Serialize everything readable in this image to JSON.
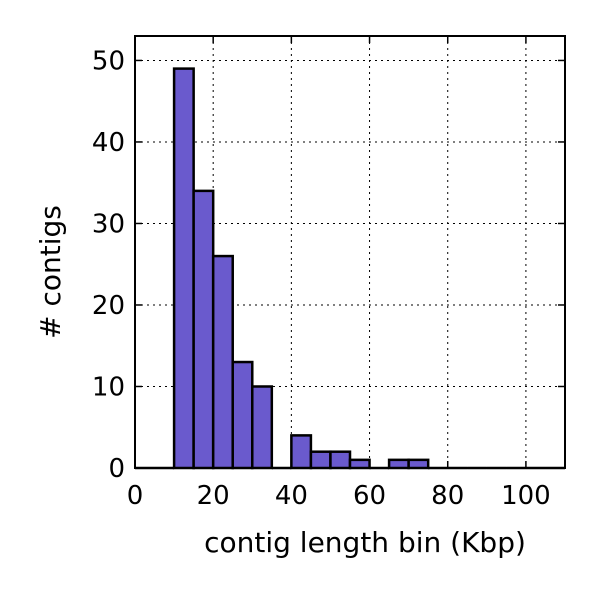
{
  "chart_data": {
    "type": "bar",
    "subtype": "histogram",
    "title": "",
    "xlabel": "contig length bin (Kbp)",
    "ylabel": "# contigs",
    "xlim": [
      0,
      110
    ],
    "ylim": [
      0,
      53
    ],
    "xticks": [
      0,
      20,
      40,
      60,
      80,
      100
    ],
    "yticks": [
      0,
      10,
      20,
      30,
      40,
      50
    ],
    "grid": true,
    "bar_color": "#6a5acd",
    "edge_color": "#000000",
    "bin_width": 5,
    "bins": [
      {
        "start": 0,
        "end": 5,
        "count": 0
      },
      {
        "start": 5,
        "end": 10,
        "count": 0
      },
      {
        "start": 10,
        "end": 15,
        "count": 49
      },
      {
        "start": 15,
        "end": 20,
        "count": 34
      },
      {
        "start": 20,
        "end": 25,
        "count": 26
      },
      {
        "start": 25,
        "end": 30,
        "count": 13
      },
      {
        "start": 30,
        "end": 35,
        "count": 10
      },
      {
        "start": 35,
        "end": 40,
        "count": 0
      },
      {
        "start": 40,
        "end": 45,
        "count": 4
      },
      {
        "start": 45,
        "end": 50,
        "count": 2
      },
      {
        "start": 50,
        "end": 55,
        "count": 2
      },
      {
        "start": 55,
        "end": 60,
        "count": 1
      },
      {
        "start": 60,
        "end": 65,
        "count": 0
      },
      {
        "start": 65,
        "end": 70,
        "count": 1
      },
      {
        "start": 70,
        "end": 75,
        "count": 1
      },
      {
        "start": 75,
        "end": 80,
        "count": 0
      },
      {
        "start": 80,
        "end": 85,
        "count": 0
      },
      {
        "start": 85,
        "end": 90,
        "count": 0
      },
      {
        "start": 90,
        "end": 95,
        "count": 0
      },
      {
        "start": 95,
        "end": 100,
        "count": 0
      },
      {
        "start": 100,
        "end": 105,
        "count": 0
      },
      {
        "start": 105,
        "end": 110,
        "count": 0
      }
    ]
  }
}
